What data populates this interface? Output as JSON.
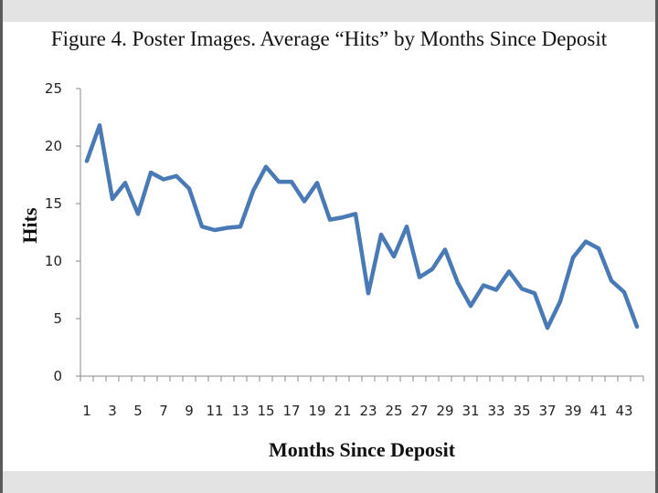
{
  "chart_data": {
    "type": "line",
    "title": "Figure 4. Poster Images. Average “Hits” by Months Since Deposit",
    "xlabel": "Months Since Deposit",
    "ylabel": "Hits",
    "x": [
      1,
      2,
      3,
      4,
      5,
      6,
      7,
      8,
      9,
      10,
      11,
      12,
      13,
      14,
      15,
      16,
      17,
      18,
      19,
      20,
      21,
      22,
      23,
      24,
      25,
      26,
      27,
      28,
      29,
      30,
      31,
      32,
      33,
      34,
      35,
      36,
      37,
      38,
      39,
      40,
      41,
      42,
      43,
      44
    ],
    "x_tick_labels": [
      "1",
      "3",
      "5",
      "7",
      "9",
      "11",
      "13",
      "15",
      "17",
      "19",
      "21",
      "23",
      "25",
      "27",
      "29",
      "31",
      "33",
      "35",
      "37",
      "39",
      "41",
      "43"
    ],
    "y_ticks": [
      0,
      5,
      10,
      15,
      20,
      25
    ],
    "ylim": [
      0,
      25
    ],
    "series": [
      {
        "color": "#4a7ab5",
        "values": [
          18.7,
          21.8,
          15.4,
          16.8,
          14.1,
          17.7,
          17.1,
          17.4,
          16.3,
          13.0,
          12.7,
          12.9,
          13.0,
          16.1,
          18.2,
          16.9,
          16.9,
          15.2,
          16.8,
          13.6,
          13.8,
          14.1,
          7.2,
          12.3,
          10.4,
          13.0,
          8.6,
          9.3,
          11.0,
          8.1,
          6.1,
          7.9,
          7.5,
          9.1,
          7.6,
          7.2,
          4.2,
          6.5,
          10.3,
          11.7,
          11.1,
          8.3,
          7.3,
          4.3
        ]
      }
    ],
    "grid": false,
    "legend": "none"
  }
}
